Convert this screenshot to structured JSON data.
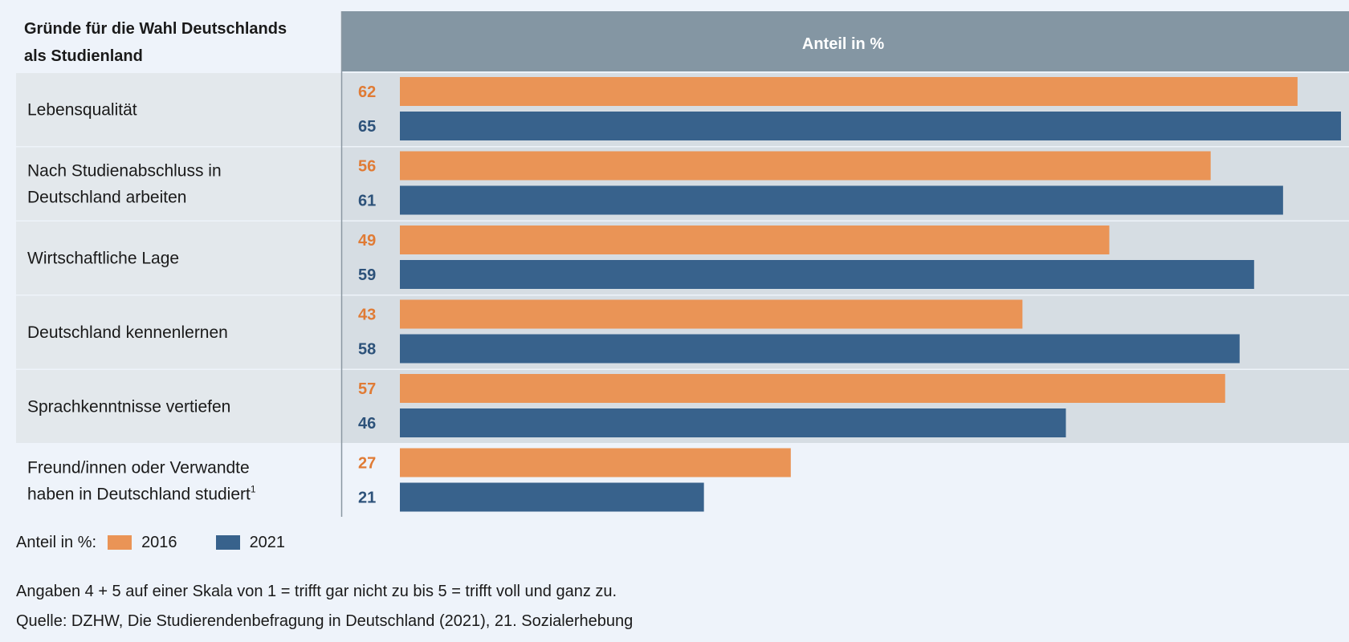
{
  "header": {
    "left_line1": "Gründe für die Wahl Deutschlands",
    "left_line2": "als Studienland",
    "right": "Anteil in %"
  },
  "colors": {
    "series_2016": "#ea9456",
    "series_2021": "#38628c",
    "header_right_bg": "#8496a3",
    "row_left_bg": "#e3e8ec",
    "row_right_bg": "#d6dde3",
    "value_2016": "#e07b35",
    "value_2021": "#2d527a"
  },
  "chart_data": {
    "type": "bar",
    "orientation": "horizontal",
    "categories": [
      [
        "Lebensqualität"
      ],
      [
        "Nach Studienabschluss in",
        "Deutschland arbeiten"
      ],
      [
        "Wirtschaftliche Lage"
      ],
      [
        "Deutschland kennenlernen"
      ],
      [
        "Sprachkenntnisse vertiefen"
      ],
      [
        "Freund/innen oder Verwandte",
        "haben in Deutschland studiert"
      ]
    ],
    "category_footnotes": [
      "",
      "",
      "",
      "",
      "",
      "1"
    ],
    "series": [
      {
        "name": "2016",
        "values": [
          62,
          56,
          49,
          43,
          57,
          27
        ]
      },
      {
        "name": "2021",
        "values": [
          65,
          61,
          59,
          58,
          46,
          21
        ]
      }
    ],
    "xlim": [
      0,
      65
    ],
    "legend_placement": "bottom-left"
  },
  "legend": {
    "prefix": "Anteil in %:",
    "items": [
      "2016",
      "2021"
    ]
  },
  "notes": {
    "scale": "Angaben 4 + 5 auf einer Skala von 1 = trifft gar nicht zu bis 5 = trifft voll und ganz zu.",
    "source": "Quelle: DZHW, Die Studierendenbefragung in Deutschland (2021), 21. Sozialerhebung"
  }
}
